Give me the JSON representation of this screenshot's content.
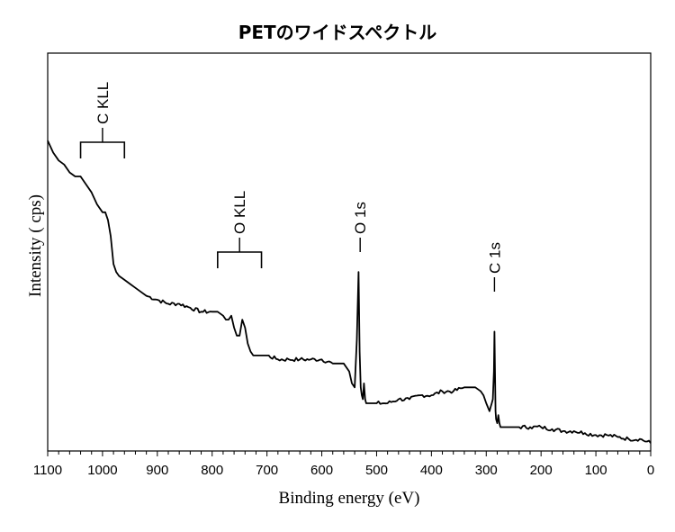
{
  "chart_data": {
    "type": "line",
    "title": "PETのワイドスペクトル",
    "xlabel": "Binding energy (eV)",
    "ylabel": "Intensity ( cps)",
    "xlim": [
      1100,
      0
    ],
    "x_reversed": true,
    "xticks": [
      1100,
      1000,
      900,
      800,
      700,
      600,
      500,
      400,
      300,
      200,
      100,
      0
    ],
    "y_ticks_shown": false,
    "ylim": [
      0,
      100
    ],
    "grid": false,
    "legend": "none",
    "series": [
      {
        "x": [
          1100,
          1090,
          1080,
          1070,
          1060,
          1050,
          1040,
          1030,
          1020,
          1010,
          1000,
          995,
          990,
          985,
          980,
          975,
          970,
          960,
          950,
          940,
          930,
          920,
          900,
          880,
          860,
          840,
          820,
          800,
          790,
          780,
          775,
          770,
          765,
          760,
          755,
          750,
          745,
          740,
          735,
          730,
          725,
          720,
          710,
          700,
          680,
          660,
          640,
          620,
          600,
          580,
          570,
          560,
          550,
          545,
          540,
          536,
          533,
          531,
          529,
          527,
          525,
          523,
          521,
          519,
          517,
          515,
          510,
          500,
          480,
          460,
          440,
          420,
          400,
          380,
          360,
          340,
          330,
          320,
          310,
          305,
          300,
          297,
          294,
          292,
          290,
          288,
          286,
          285,
          284,
          283,
          282,
          280,
          278,
          276,
          274,
          272,
          270,
          265,
          260,
          250,
          240,
          220,
          200,
          180,
          160,
          140,
          120,
          100,
          80,
          60,
          40,
          20,
          0
        ],
        "y": [
          78,
          75,
          73,
          72,
          70,
          69,
          69,
          67,
          65,
          62,
          60,
          60,
          58,
          54,
          47,
          45,
          44,
          43,
          42,
          41,
          40,
          39,
          38,
          37,
          37,
          36,
          35,
          35,
          35,
          34,
          33,
          33,
          34,
          31,
          29,
          29,
          33,
          31,
          27,
          25,
          24,
          24,
          24,
          24,
          23,
          23,
          23,
          23,
          23,
          22,
          22,
          22,
          20,
          17,
          16,
          28,
          45,
          25,
          16,
          14,
          13,
          17,
          13,
          12,
          12,
          12,
          12,
          12,
          12,
          13,
          13,
          14,
          14,
          15,
          15,
          16,
          16,
          16,
          15,
          14,
          12,
          11,
          10,
          11,
          12,
          13,
          20,
          30,
          20,
          10,
          8,
          7,
          9,
          7,
          6,
          6,
          6,
          6,
          6,
          6,
          6,
          6,
          6,
          5.5,
          5,
          5,
          4.5,
          4,
          4,
          3.5,
          3,
          3,
          2
        ]
      }
    ],
    "annotations": [
      {
        "text": "C KLL",
        "x_range": [
          1040,
          960
        ]
      },
      {
        "text": "O KLL",
        "x_range": [
          790,
          710
        ]
      },
      {
        "text": "O 1s",
        "x": 530
      },
      {
        "text": "C 1s",
        "x": 285
      }
    ]
  }
}
